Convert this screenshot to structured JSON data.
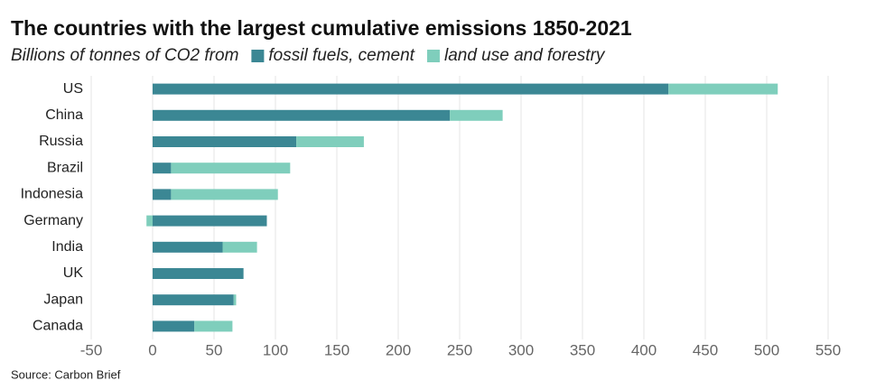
{
  "chart_data": {
    "type": "stacked-barh",
    "title": "The countries with the largest cumulative emissions 1850-2021",
    "subtitle": "Billions of tonnes of CO2 from",
    "source": "Source: Carbon Brief",
    "categories": [
      "US",
      "China",
      "Russia",
      "Brazil",
      "Indonesia",
      "Germany",
      "India",
      "UK",
      "Japan",
      "Canada"
    ],
    "series": [
      {
        "name": "fossil fuels, cement",
        "color": "#3b8794",
        "values": [
          420,
          242,
          117,
          15,
          15,
          93,
          57,
          74,
          66,
          34
        ]
      },
      {
        "name": "land use and forestry",
        "color": "#7fcebc",
        "values": [
          89,
          43,
          55,
          97,
          87,
          -5,
          28,
          0,
          2,
          31
        ]
      }
    ],
    "xlim": [
      -50,
      550
    ],
    "xticks": [
      -50,
      0,
      50,
      100,
      150,
      200,
      250,
      300,
      350,
      400,
      450,
      500,
      550
    ],
    "grid": true
  }
}
